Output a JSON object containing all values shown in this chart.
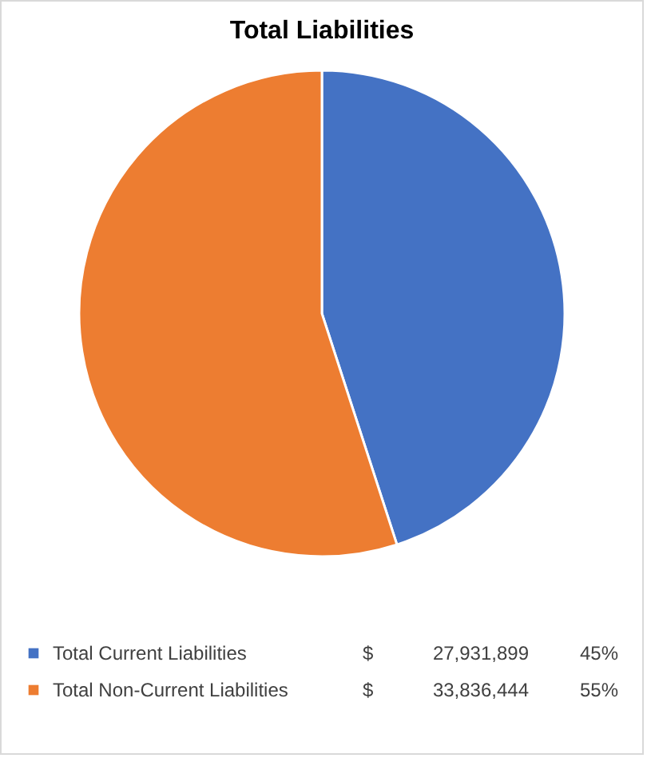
{
  "chart_data": {
    "type": "pie",
    "title": "Total Liabilities",
    "categories": [
      "Total Current Liabilities",
      "Total Non-Current Liabilities"
    ],
    "values": [
      45,
      55
    ],
    "colors": [
      "#4472c4",
      "#ed7d31"
    ],
    "value_labels": [
      "45%",
      "55%"
    ],
    "annotations": [
      "$ 27,931,899",
      "$ 33,836,444"
    ],
    "legend": "bottom"
  }
}
